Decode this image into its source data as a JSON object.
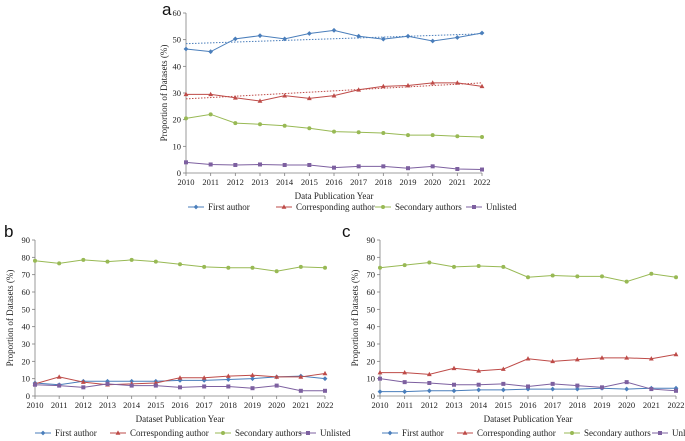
{
  "colors": {
    "first": "#4a7ebb",
    "corresponding": "#be4b48",
    "secondary": "#98b954",
    "unlisted": "#7d60a0",
    "axis": "#7f7f7f"
  },
  "chart_data": [
    {
      "panel": "a",
      "type": "line",
      "xlabel": "Data Publication Year",
      "ylabel": "Proportion of Datasets (%)",
      "ylim": [
        0,
        60
      ],
      "yticks": [
        0,
        10,
        20,
        30,
        40,
        50,
        60
      ],
      "categories": [
        "2010",
        "2011",
        "2012",
        "2013",
        "2014",
        "2015",
        "2016",
        "2017",
        "2018",
        "2019",
        "2020",
        "2021",
        "2022"
      ],
      "series": [
        {
          "key": "first",
          "name": "First author",
          "marker": "diamond",
          "values": [
            46.5,
            45.5,
            50.3,
            51.5,
            50.3,
            52.3,
            53.5,
            51.3,
            50.2,
            51.3,
            49.5,
            50.8,
            52.5
          ],
          "trend": [
            48.5,
            52.2
          ]
        },
        {
          "key": "corresponding",
          "name": "Corresponding author",
          "marker": "triangle",
          "values": [
            29.5,
            29.5,
            28.2,
            27.0,
            29.0,
            28.0,
            29.0,
            31.2,
            32.5,
            32.8,
            33.8,
            33.8,
            32.5
          ],
          "trend": [
            27.8,
            33.8
          ]
        },
        {
          "key": "secondary",
          "name": "Secondary authors",
          "marker": "circle",
          "values": [
            20.5,
            22.0,
            18.7,
            18.3,
            17.7,
            16.8,
            15.5,
            15.3,
            15.0,
            14.2,
            14.2,
            13.8,
            13.5
          ]
        },
        {
          "key": "unlisted",
          "name": "Unlisted",
          "marker": "square",
          "values": [
            4.0,
            3.2,
            3.0,
            3.2,
            3.0,
            3.0,
            2.0,
            2.5,
            2.5,
            1.8,
            2.5,
            1.5,
            1.3
          ]
        }
      ]
    },
    {
      "panel": "b",
      "type": "line",
      "xlabel": "Dataset Publication Year",
      "ylabel": "Proportion of Datasets (%)",
      "ylim": [
        0,
        90
      ],
      "yticks": [
        0,
        10,
        20,
        30,
        40,
        50,
        60,
        70,
        80,
        90
      ],
      "categories": [
        "2010",
        "2011",
        "2012",
        "2013",
        "2014",
        "2015",
        "2016",
        "2017",
        "2018",
        "2019",
        "2020",
        "2021",
        "2022"
      ],
      "series": [
        {
          "key": "first",
          "name": "First author",
          "marker": "diamond",
          "values": [
            7.5,
            6.5,
            8.5,
            8.5,
            8.5,
            8.5,
            9.0,
            9.0,
            9.5,
            10.0,
            11.0,
            11.5,
            10.0
          ]
        },
        {
          "key": "corresponding",
          "name": "Corresponding author",
          "marker": "triangle",
          "values": [
            7.0,
            11.0,
            8.0,
            6.5,
            7.0,
            7.5,
            10.5,
            10.5,
            11.5,
            12.0,
            11.0,
            11.0,
            13.0
          ]
        },
        {
          "key": "secondary",
          "name": "Secondary authors",
          "marker": "circle",
          "values": [
            78.0,
            76.5,
            78.5,
            77.5,
            78.5,
            77.5,
            76.0,
            74.5,
            74.0,
            74.0,
            72.0,
            74.5,
            74.0
          ]
        },
        {
          "key": "unlisted",
          "name": "Unlisted",
          "marker": "square",
          "values": [
            6.5,
            6.0,
            5.0,
            7.0,
            6.0,
            6.0,
            5.0,
            5.5,
            5.5,
            4.5,
            6.0,
            3.0,
            3.0
          ]
        }
      ]
    },
    {
      "panel": "c",
      "type": "line",
      "xlabel": "Dataset Publication Year",
      "ylabel": "Proportion of Datasets (%)",
      "ylim": [
        0,
        90
      ],
      "yticks": [
        0,
        10,
        20,
        30,
        40,
        50,
        60,
        70,
        80,
        90
      ],
      "categories": [
        "2010",
        "2011",
        "2012",
        "2013",
        "2014",
        "2015",
        "2016",
        "2017",
        "2018",
        "2019",
        "2020",
        "2021",
        "2022"
      ],
      "series": [
        {
          "key": "first",
          "name": "First author",
          "marker": "diamond",
          "values": [
            2.5,
            2.5,
            3.0,
            3.0,
            3.5,
            3.5,
            4.0,
            4.0,
            4.0,
            4.5,
            4.0,
            4.5,
            4.5
          ]
        },
        {
          "key": "corresponding",
          "name": "Corresponding author",
          "marker": "triangle",
          "values": [
            13.5,
            13.5,
            12.5,
            16.0,
            14.5,
            15.5,
            21.5,
            20.0,
            21.0,
            22.0,
            22.0,
            21.5,
            24.0
          ]
        },
        {
          "key": "secondary",
          "name": "Secondary authors",
          "marker": "circle",
          "values": [
            74.0,
            75.5,
            77.0,
            74.5,
            75.0,
            74.5,
            68.5,
            69.5,
            69.0,
            69.0,
            66.0,
            70.5,
            68.5
          ]
        },
        {
          "key": "unlisted",
          "name": "Unlisted",
          "marker": "square",
          "values": [
            10.0,
            8.0,
            7.5,
            6.5,
            6.5,
            7.0,
            5.5,
            7.0,
            6.0,
            5.0,
            8.0,
            4.0,
            3.0
          ]
        }
      ]
    }
  ]
}
